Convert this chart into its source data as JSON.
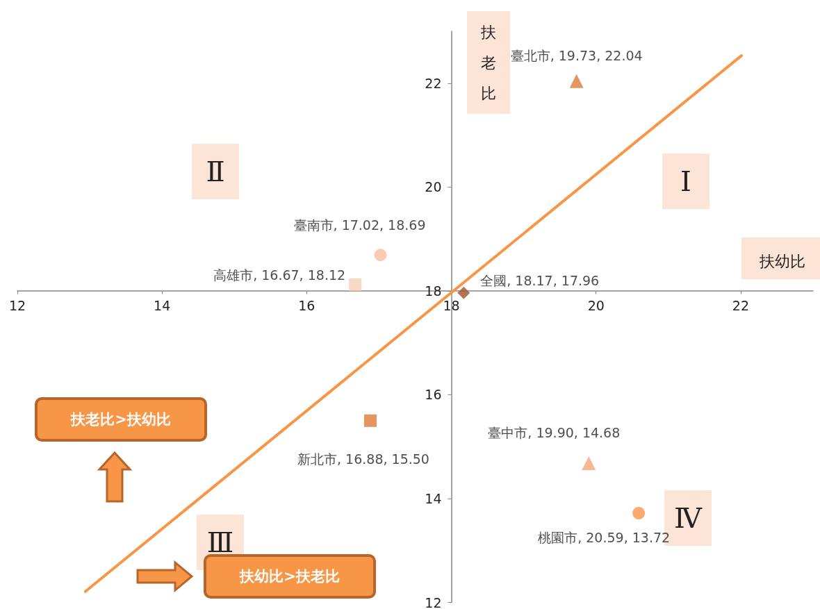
{
  "chart_data": {
    "type": "scatter",
    "xlabel": "扶幼比",
    "ylabel": "扶老比",
    "xlim": [
      12,
      23
    ],
    "ylim": [
      12,
      23
    ],
    "xticks": [
      12,
      14,
      16,
      18,
      20,
      22
    ],
    "yticks": [
      12,
      14,
      16,
      18,
      20,
      22
    ],
    "grid": false,
    "annotations": [
      "Ⅰ",
      "Ⅱ",
      "Ⅲ",
      "Ⅳ",
      "扶老比>扶幼比",
      "扶幼比>扶老比"
    ],
    "series": [
      {
        "type": "line",
        "color": "#f79646",
        "marker": "none",
        "x": [
          12.94,
          22.01
        ],
        "values": [
          12.21,
          22.53
        ]
      },
      {
        "color": "#e07b39",
        "marker": "triangle",
        "x": [
          19.73
        ],
        "values": [
          22.04
        ],
        "value_labels": [
          "臺北市, 19.73, 22.04"
        ]
      },
      {
        "color": "#f8c0a0",
        "marker": "circle",
        "x": [
          17.02
        ],
        "values": [
          18.69
        ],
        "value_labels": [
          "臺南市, 17.02, 18.69"
        ]
      },
      {
        "color": "#f8cfb8",
        "marker": "square",
        "x": [
          16.67
        ],
        "values": [
          18.12
        ],
        "value_labels": [
          "高雄市, 16.67, 18.12"
        ]
      },
      {
        "color": "#a0522d",
        "marker": "diamond",
        "x": [
          18.17
        ],
        "values": [
          17.96
        ],
        "value_labels": [
          "全國, 18.17, 17.96"
        ]
      },
      {
        "color": "#e07b39",
        "marker": "square",
        "x": [
          16.88
        ],
        "values": [
          15.5
        ],
        "value_labels": [
          "新北市, 16.88, 15.50"
        ]
      },
      {
        "color": "#f4a67a",
        "marker": "triangle",
        "x": [
          19.9
        ],
        "values": [
          14.68
        ],
        "value_labels": [
          "臺中市, 19.90, 14.68"
        ]
      },
      {
        "color": "#f79646",
        "marker": "circle",
        "x": [
          20.59
        ],
        "values": [
          13.72
        ],
        "value_labels": [
          "桃園市, 20.59, 13.72"
        ]
      }
    ]
  }
}
